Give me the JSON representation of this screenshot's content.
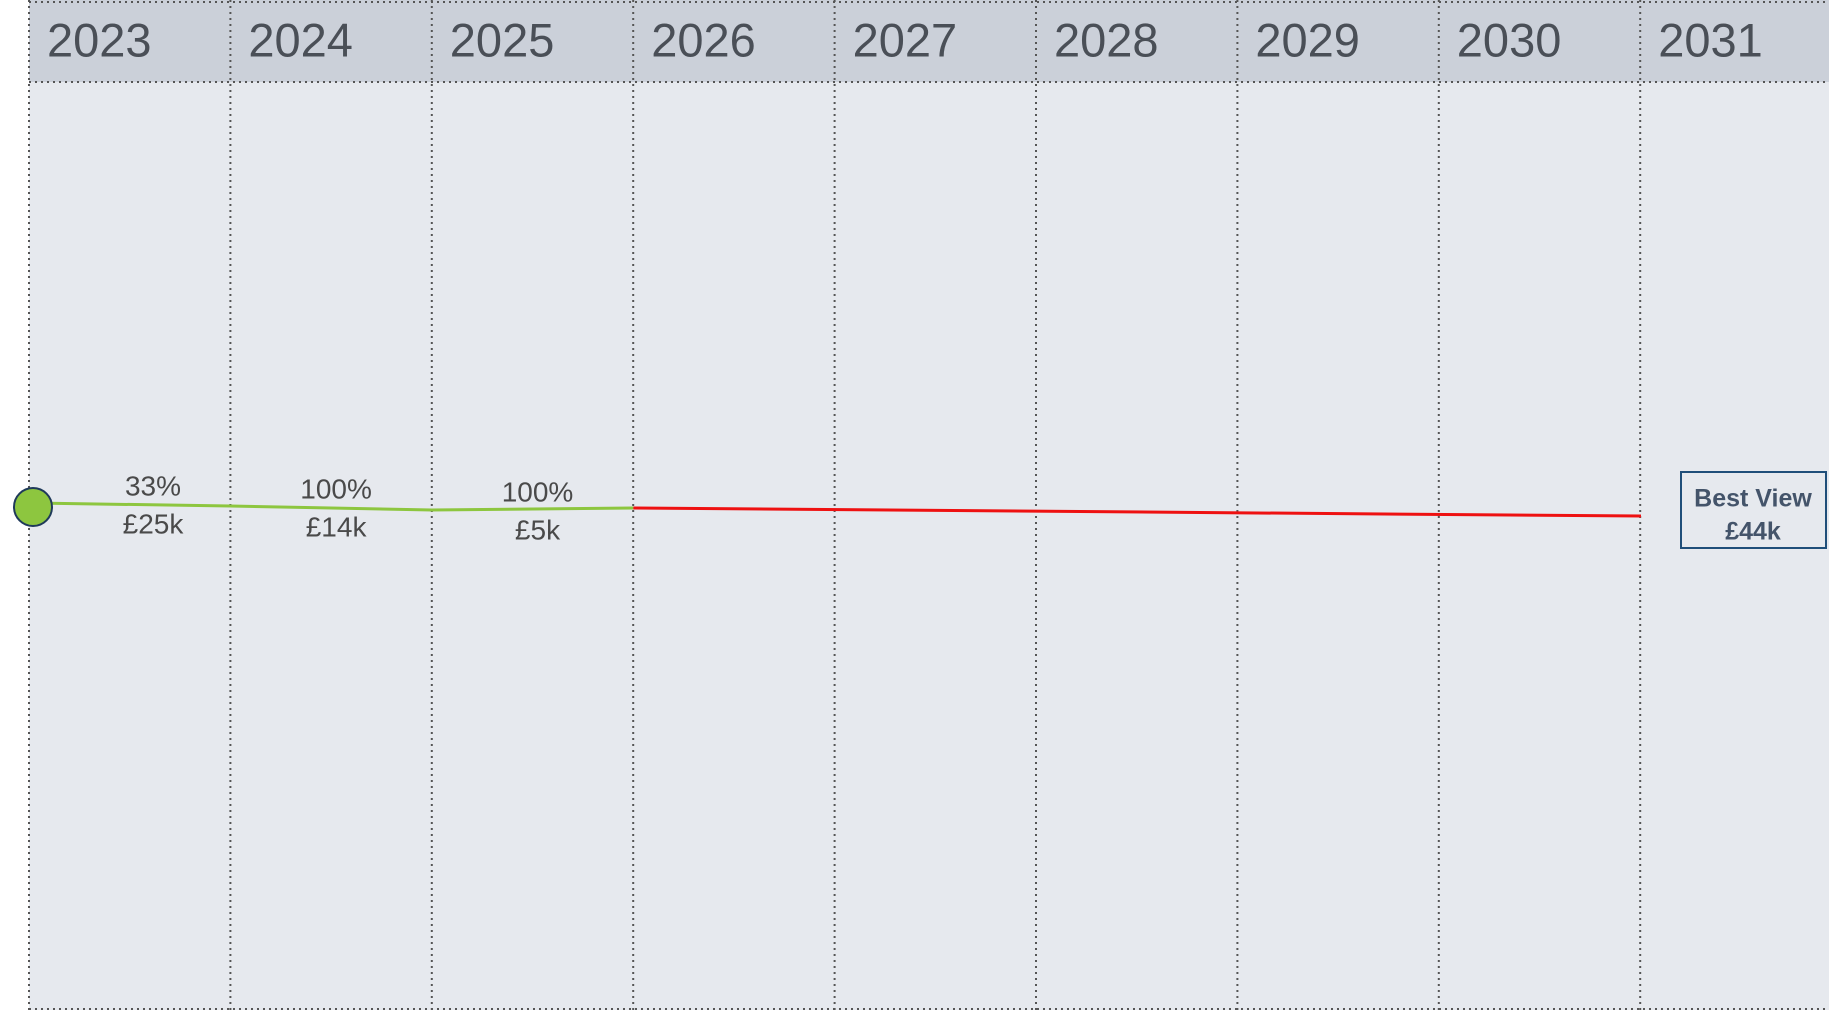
{
  "years": [
    "2023",
    "2024",
    "2025",
    "2026",
    "2027",
    "2028",
    "2029",
    "2030",
    "2031"
  ],
  "segments": [
    {
      "percent": "33%",
      "amount": "£25k"
    },
    {
      "percent": "100%",
      "amount": "£14k"
    },
    {
      "percent": "100%",
      "amount": "£5k"
    }
  ],
  "summary": {
    "title": "Best View",
    "amount": "£44k"
  }
}
